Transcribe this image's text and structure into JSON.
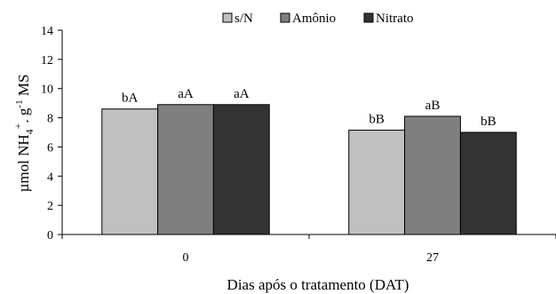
{
  "chart_data": {
    "type": "bar",
    "title": "",
    "xlabel": "Dias após o tratamento (DAT)",
    "ylabel_parts": {
      "pre": "µmol NH",
      "sub": "4",
      "sup": "+",
      "mid": ". g",
      "sup2": "-1",
      "post": " MS"
    },
    "categories": [
      "0",
      "27"
    ],
    "ylim": [
      0,
      14
    ],
    "yticks": [
      0,
      2,
      4,
      6,
      8,
      10,
      12,
      14
    ],
    "grid": false,
    "legend_position": "top",
    "series": [
      {
        "name": "s/N",
        "color": "#c0c0c0",
        "values": [
          8.6,
          7.15
        ],
        "labels": [
          "bA",
          "bB"
        ]
      },
      {
        "name": "Amônio",
        "color": "#7f7f7f",
        "values": [
          8.9,
          8.1
        ],
        "labels": [
          "aA",
          "aB"
        ]
      },
      {
        "name": "Nitrato",
        "color": "#333333",
        "values": [
          8.9,
          7.0
        ],
        "labels": [
          "aA",
          "bB"
        ]
      }
    ]
  }
}
